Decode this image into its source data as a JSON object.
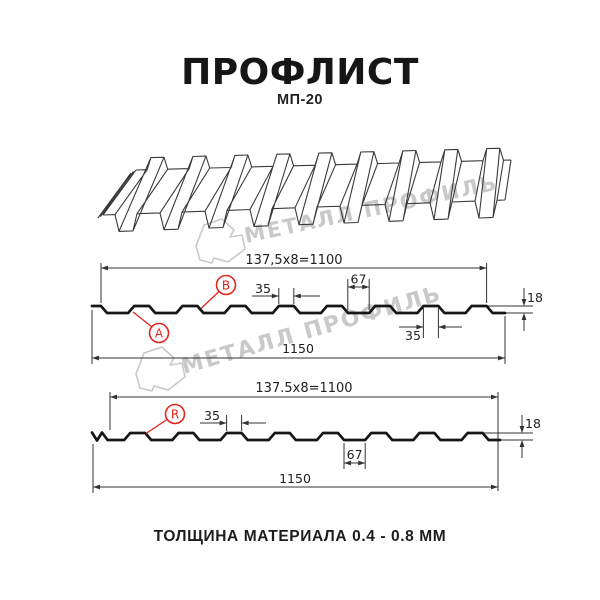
{
  "title": {
    "text": "ПРОФЛИСТ",
    "model": "МП-20"
  },
  "watermark": {
    "text": "МЕТАЛЛ ПРОФИЛЬ"
  },
  "sections": [
    {
      "name": "profile-section-front",
      "pitch_label": "137,5x8=1100",
      "rib_top_width": "35",
      "groove_width": "67",
      "height": "18",
      "rib_bottom_width": "35",
      "total_width": "1150",
      "point_labels": {
        "a": "A",
        "b": "B"
      }
    },
    {
      "name": "profile-section-reverse",
      "pitch_label": "137.5x8=1100",
      "rib_top_width": "35",
      "groove_width": "67",
      "height": "18",
      "total_width": "1150",
      "point_labels": {
        "r": "R"
      }
    }
  ],
  "footer": {
    "text": "ТОЛЩИНА МАТЕРИАЛА 0.4 - 0.8 ММ"
  },
  "colors": {
    "accent": "#e2251b",
    "line": "#161616",
    "thin_line": "#333333",
    "watermark": "#c9c9c9",
    "background": "#ffffff"
  }
}
